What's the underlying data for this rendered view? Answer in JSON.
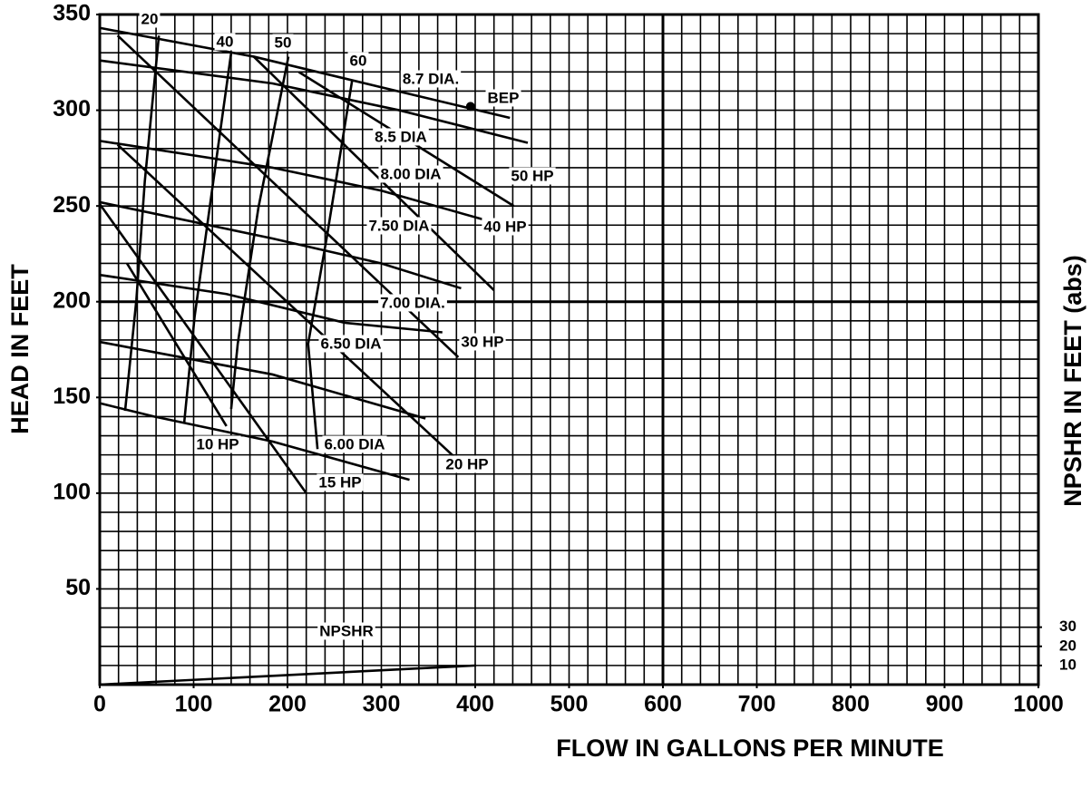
{
  "chart_data": {
    "type": "line",
    "ylabel": "HEAD IN FEET",
    "y2label": "NPSHR IN FEET (abs)",
    "xlabel": "FLOW IN GALLONS PER MINUTE",
    "xlim": [
      0,
      1000
    ],
    "xticks": [
      0,
      100,
      200,
      300,
      400,
      500,
      600,
      700,
      800,
      900,
      1000
    ],
    "ylim": [
      0,
      350
    ],
    "yticks": [
      50,
      100,
      150,
      200,
      250,
      300,
      350
    ],
    "y2lim": [
      0,
      350
    ],
    "y2ticks": [
      10,
      20,
      30
    ],
    "grid": true,
    "minor_grid": {
      "x": 20,
      "y": 10
    },
    "major_grid": {
      "x": 600,
      "y": 200
    },
    "series": [
      {
        "name": "20",
        "color": "#000000",
        "x": [
          27,
          39,
          48,
          63
        ],
        "values": [
          143,
          201,
          263,
          339
        ]
      },
      {
        "name": "40",
        "color": "#000000",
        "x": [
          90,
          101,
          121,
          140
        ],
        "values": [
          137,
          192,
          263,
          330
        ]
      },
      {
        "name": "50",
        "color": "#000000",
        "x": [
          140,
          147,
          169,
          201
        ],
        "values": [
          144,
          178,
          249,
          328
        ]
      },
      {
        "name": "60",
        "color": "#000000",
        "x": [
          232,
          222,
          242,
          269
        ],
        "values": [
          123,
          178,
          234,
          316
        ]
      },
      {
        "name": "8.7 DIA.",
        "color": "#000000",
        "x": [
          0,
          164,
          300,
          437
        ],
        "values": [
          343,
          328,
          312,
          296
        ]
      },
      {
        "name": "8.5 DIA",
        "color": "#000000",
        "x": [
          0,
          184,
          319,
          456
        ],
        "values": [
          326,
          314,
          300,
          283
        ]
      },
      {
        "name": "8.00 DIA",
        "color": "#000000",
        "x": [
          0,
          184,
          300,
          408
        ],
        "values": [
          284,
          270,
          258,
          243
        ]
      },
      {
        "name": "50 HP",
        "color": "#000000",
        "x": [
          212,
          441
        ],
        "values": [
          320,
          250
        ]
      },
      {
        "name": "7.50 DIA",
        "color": "#000000",
        "x": [
          0,
          184,
          300,
          385
        ],
        "values": [
          252,
          233,
          220,
          207
        ]
      },
      {
        "name": "40 HP",
        "color": "#000000",
        "x": [
          164,
          420
        ],
        "values": [
          328,
          206
        ]
      },
      {
        "name": "7.00 DIA.",
        "color": "#000000",
        "x": [
          0,
          135,
          261,
          365
        ],
        "values": [
          214,
          204,
          189,
          184
        ]
      },
      {
        "name": "30 HP",
        "color": "#000000",
        "x": [
          19,
          382
        ],
        "values": [
          339,
          171
        ]
      },
      {
        "name": "6.50 DIA",
        "color": "#000000",
        "x": [
          0,
          184,
          347
        ],
        "values": [
          179,
          162,
          139
        ]
      },
      {
        "name": "10 HP",
        "color": "#000000",
        "x": [
          29,
          135
        ],
        "values": [
          220,
          135
        ]
      },
      {
        "name": "6.00 DIA",
        "color": "#000000",
        "x": [
          0,
          58,
          184,
          330
        ],
        "values": [
          147,
          140,
          127,
          107
        ]
      },
      {
        "name": "20 HP",
        "color": "#000000",
        "x": [
          19,
          382
        ],
        "values": [
          282,
          117
        ]
      },
      {
        "name": "15 HP",
        "color": "#000000",
        "x": [
          0,
          220
        ],
        "values": [
          251,
          100
        ]
      },
      {
        "name": "NPSHR",
        "color": "#000000",
        "axis": "y2",
        "x": [
          0,
          401
        ],
        "values": [
          0,
          10
        ]
      }
    ],
    "point": {
      "label": "BEP",
      "x": 395,
      "y": 302
    }
  }
}
